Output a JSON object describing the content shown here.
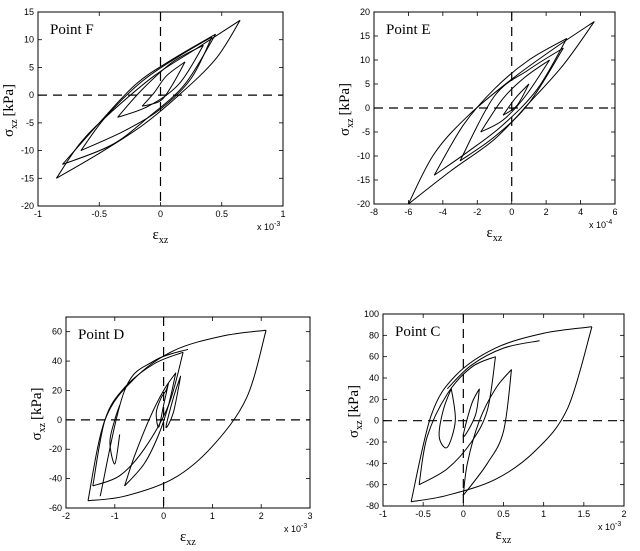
{
  "chart_data": [
    {
      "type": "line",
      "panel": "top-left",
      "title": "Point F",
      "xlabel": "ε",
      "xlabel_sub": "xz",
      "ylabel": "σ",
      "ylabel_sub": "xz",
      "ylabel_unit": "[kPa]",
      "x_scale_note": "x 10",
      "x_scale_exp": "-3",
      "xlim": [
        -1,
        1
      ],
      "ylim": [
        -20,
        15
      ],
      "xticks": [
        "-1",
        "-0.5",
        "0",
        "0.5",
        "1"
      ],
      "yticks": [
        "-20",
        "-15",
        "-10",
        "-5",
        "0",
        "5",
        "10",
        "15"
      ],
      "xtick_values": [
        -1,
        -0.5,
        0,
        0.5,
        1
      ],
      "ytick_values": [
        -20,
        -15,
        -10,
        -5,
        0,
        5,
        10,
        15
      ],
      "reference_lines": {
        "x": 0,
        "y": 0,
        "style": "dashed"
      },
      "series": [
        {
          "x": [
            0.65,
            0.3,
            -0.05,
            -0.4,
            -0.65,
            -0.85
          ],
          "y": [
            13.5,
            8.5,
            3.5,
            -3.0,
            -8.5,
            -15.0
          ]
        },
        {
          "x": [
            -0.85,
            -0.5,
            -0.15,
            0.15,
            0.45,
            0.65
          ],
          "y": [
            -15.0,
            -10.5,
            -5.5,
            0.0,
            6.5,
            13.5
          ]
        },
        {
          "x": [
            0.45,
            0.1,
            -0.2,
            -0.5,
            -0.8
          ],
          "y": [
            11.0,
            6.5,
            2.0,
            -5.0,
            -12.5
          ]
        },
        {
          "x": [
            -0.8,
            -0.4,
            -0.1,
            0.2,
            0.45
          ],
          "y": [
            -12.5,
            -9.0,
            -4.0,
            2.0,
            11.0
          ]
        },
        {
          "x": [
            0.42,
            0.15,
            -0.15,
            -0.45,
            -0.65
          ],
          "y": [
            10.5,
            7.0,
            2.5,
            -4.0,
            -10.0
          ]
        },
        {
          "x": [
            -0.65,
            -0.3,
            0.0,
            0.25,
            0.42
          ],
          "y": [
            -10.0,
            -6.5,
            -2.5,
            3.0,
            10.5
          ]
        },
        {
          "x": [
            0.35,
            0.1,
            -0.15,
            -0.35
          ],
          "y": [
            9.0,
            6.0,
            1.0,
            -4.0
          ]
        },
        {
          "x": [
            -0.35,
            -0.1,
            0.15,
            0.35
          ],
          "y": [
            -4.0,
            -2.0,
            2.0,
            9.0
          ]
        },
        {
          "x": [
            0.2,
            0.05,
            -0.05,
            -0.15
          ],
          "y": [
            6.0,
            3.5,
            0.5,
            -2.0
          ]
        },
        {
          "x": [
            -0.15,
            0.0,
            0.1,
            0.2
          ],
          "y": [
            -2.0,
            -1.0,
            2.0,
            6.0
          ]
        }
      ]
    },
    {
      "type": "line",
      "panel": "top-right",
      "title": "Point E",
      "xlabel": "ε",
      "xlabel_sub": "xz",
      "ylabel": "σ",
      "ylabel_sub": "xz",
      "ylabel_unit": "[kPa]",
      "x_scale_note": "x 10",
      "x_scale_exp": "-4",
      "xlim": [
        -8,
        6
      ],
      "ylim": [
        -20,
        20
      ],
      "xticks": [
        "-8",
        "-6",
        "-4",
        "-2",
        "0",
        "2",
        "4",
        "6"
      ],
      "yticks": [
        "-20",
        "-15",
        "-10",
        "-5",
        "0",
        "5",
        "10",
        "15",
        "20"
      ],
      "xtick_values": [
        -8,
        -6,
        -4,
        -2,
        0,
        2,
        4,
        6
      ],
      "ytick_values": [
        -20,
        -15,
        -10,
        -5,
        0,
        5,
        10,
        15,
        20
      ],
      "reference_lines": {
        "x": 0,
        "y": 0,
        "style": "dashed"
      },
      "series": [
        {
          "x": [
            4.8,
            2.5,
            0.0,
            -2.5,
            -4.5,
            -6.0
          ],
          "y": [
            18.0,
            12.5,
            6.0,
            -1.5,
            -9.5,
            -20.0
          ]
        },
        {
          "x": [
            -6.0,
            -3.5,
            -1.0,
            1.0,
            3.0,
            4.8
          ],
          "y": [
            -20.0,
            -13.0,
            -6.5,
            1.0,
            9.0,
            18.0
          ]
        },
        {
          "x": [
            3.2,
            1.0,
            -1.0,
            -2.8,
            -4.5
          ],
          "y": [
            14.5,
            10.0,
            4.0,
            -3.5,
            -14.0
          ]
        },
        {
          "x": [
            -4.5,
            -2.5,
            -0.5,
            1.5,
            3.2
          ],
          "y": [
            -14.0,
            -9.0,
            -3.5,
            4.0,
            14.5
          ]
        },
        {
          "x": [
            3.0,
            1.0,
            -1.0,
            -3.0
          ],
          "y": [
            12.5,
            8.0,
            2.5,
            -11.0
          ]
        },
        {
          "x": [
            -3.0,
            -1.0,
            1.0,
            3.0
          ],
          "y": [
            -11.0,
            -6.0,
            1.0,
            12.5
          ]
        },
        {
          "x": [
            2.2,
            0.8,
            -0.5,
            -1.8
          ],
          "y": [
            10.0,
            6.5,
            2.0,
            -5.0
          ]
        },
        {
          "x": [
            -1.8,
            -0.5,
            0.8,
            2.2
          ],
          "y": [
            -5.0,
            -2.5,
            2.5,
            10.0
          ]
        },
        {
          "x": [
            1.0,
            0.2,
            -0.5
          ],
          "y": [
            5.0,
            2.0,
            -1.5
          ]
        },
        {
          "x": [
            -0.5,
            0.3,
            1.0
          ],
          "y": [
            -1.5,
            0.5,
            5.0
          ]
        }
      ]
    },
    {
      "type": "line",
      "panel": "bottom-left",
      "title": "Point D",
      "xlabel": "ε",
      "xlabel_sub": "xz",
      "ylabel": "σ",
      "ylabel_sub": "xz",
      "ylabel_unit": "[kPa]",
      "x_scale_note": "x 10",
      "x_scale_exp": "-3",
      "xlim": [
        -2,
        3
      ],
      "ylim": [
        -60,
        70
      ],
      "xticks": [
        "-2",
        "-1",
        "0",
        "1",
        "2",
        "3"
      ],
      "yticks": [
        "-60",
        "-40",
        "-20",
        "0",
        "20",
        "40",
        "60"
      ],
      "xtick_values": [
        -2,
        -1,
        0,
        1,
        2,
        3
      ],
      "ytick_values": [
        -60,
        -40,
        -20,
        0,
        20,
        40,
        60
      ],
      "reference_lines": {
        "x": 0,
        "y": 0,
        "style": "dashed"
      },
      "series": [
        {
          "x": [
            2.1,
            1.2,
            0.2,
            -0.6,
            -1.2,
            -1.55
          ],
          "y": [
            61.0,
            57.0,
            47.0,
            28.0,
            0.0,
            -55.0
          ]
        },
        {
          "x": [
            -1.55,
            -0.8,
            0.2,
            1.0,
            1.7,
            2.1
          ],
          "y": [
            -55.0,
            -52.0,
            -40.0,
            -18.0,
            15.0,
            61.0
          ]
        },
        {
          "x": [
            0.4,
            -0.2,
            -0.8,
            -1.2,
            -1.45
          ],
          "y": [
            46.0,
            38.0,
            22.0,
            0.0,
            -45.0
          ]
        },
        {
          "x": [
            -1.45,
            -0.9,
            -0.4,
            0.1,
            0.4
          ],
          "y": [
            -45.0,
            -38.0,
            -20.0,
            10.0,
            46.0
          ]
        },
        {
          "x": [
            0.5,
            -0.2,
            -0.8,
            -1.3
          ],
          "y": [
            48.0,
            40.0,
            20.0,
            -52.0
          ]
        },
        {
          "x": [
            -0.9,
            -1.0,
            -1.1,
            -1.0,
            -0.9
          ],
          "y": [
            10.0,
            0.0,
            -15.0,
            -30.0,
            -10.0
          ]
        },
        {
          "x": [
            0.25,
            0.0,
            -0.3,
            -0.6,
            -0.8
          ],
          "y": [
            32.0,
            20.0,
            0.0,
            -25.0,
            -45.0
          ]
        },
        {
          "x": [
            -0.8,
            -0.4,
            -0.1,
            0.1,
            0.25
          ],
          "y": [
            -45.0,
            -30.0,
            -10.0,
            10.0,
            32.0
          ]
        },
        {
          "x": [
            0.1,
            0.0,
            -0.1,
            -0.15,
            -0.05,
            0.05,
            0.1
          ],
          "y": [
            25.0,
            10.0,
            -5.0,
            5.0,
            15.0,
            20.0,
            25.0
          ]
        },
        {
          "x": [
            0.35,
            0.2,
            0.05,
            0.2,
            0.35
          ],
          "y": [
            30.0,
            15.0,
            -5.0,
            5.0,
            30.0
          ]
        }
      ]
    },
    {
      "type": "line",
      "panel": "bottom-right",
      "title": "Point C",
      "xlabel": "ε",
      "xlabel_sub": "xz",
      "ylabel": "σ",
      "ylabel_sub": "xz",
      "ylabel_unit": "[kPa]",
      "x_scale_note": "x 10",
      "x_scale_exp": "-3",
      "xlim": [
        -1,
        2
      ],
      "ylim": [
        -80,
        100
      ],
      "xticks": [
        "-1",
        "-0.5",
        "0",
        "0.5",
        "1",
        "1.5",
        "2"
      ],
      "yticks": [
        "-80",
        "-60",
        "-40",
        "-20",
        "0",
        "20",
        "40",
        "60",
        "80",
        "100"
      ],
      "xtick_values": [
        -1,
        -0.5,
        0,
        0.5,
        1,
        1.5,
        2
      ],
      "ytick_values": [
        -80,
        -60,
        -40,
        -20,
        0,
        20,
        40,
        60,
        80,
        100
      ],
      "reference_lines": {
        "x": 0,
        "y": 0,
        "style": "dashed"
      },
      "series": [
        {
          "x": [
            1.6,
            1.0,
            0.4,
            -0.1,
            -0.4,
            -0.65
          ],
          "y": [
            88.0,
            82.0,
            68.0,
            42.0,
            5.0,
            -76.0
          ]
        },
        {
          "x": [
            -0.65,
            -0.2,
            0.4,
            0.9,
            1.3,
            1.6
          ],
          "y": [
            -76.0,
            -70.0,
            -55.0,
            -28.0,
            12.0,
            88.0
          ]
        },
        {
          "x": [
            0.95,
            0.5,
            0.1,
            -0.2
          ],
          "y": [
            75.0,
            68.0,
            52.0,
            30.0
          ]
        },
        {
          "x": [
            0.4,
            0.1,
            -0.2,
            -0.45,
            -0.55
          ],
          "y": [
            60.0,
            50.0,
            25.0,
            -15.0,
            -60.0
          ]
        },
        {
          "x": [
            -0.55,
            -0.2,
            0.1,
            0.3,
            0.4
          ],
          "y": [
            -60.0,
            -45.0,
            -20.0,
            10.0,
            60.0
          ]
        },
        {
          "x": [
            0.6,
            0.4,
            0.2,
            0.05,
            0.0
          ],
          "y": [
            48.0,
            30.0,
            0.0,
            -40.0,
            -70.0
          ]
        },
        {
          "x": [
            0.0,
            0.3,
            0.5,
            0.6
          ],
          "y": [
            -70.0,
            -40.0,
            -10.0,
            48.0
          ]
        },
        {
          "x": [
            -0.15,
            -0.25,
            -0.3,
            -0.2,
            -0.1,
            -0.15
          ],
          "y": [
            30.0,
            10.0,
            -15.0,
            -25.0,
            0.0,
            30.0
          ]
        },
        {
          "x": [
            0.2,
            0.1,
            0.0,
            0.15,
            0.2
          ],
          "y": [
            30.0,
            15.0,
            -15.0,
            5.0,
            30.0
          ]
        }
      ]
    }
  ]
}
